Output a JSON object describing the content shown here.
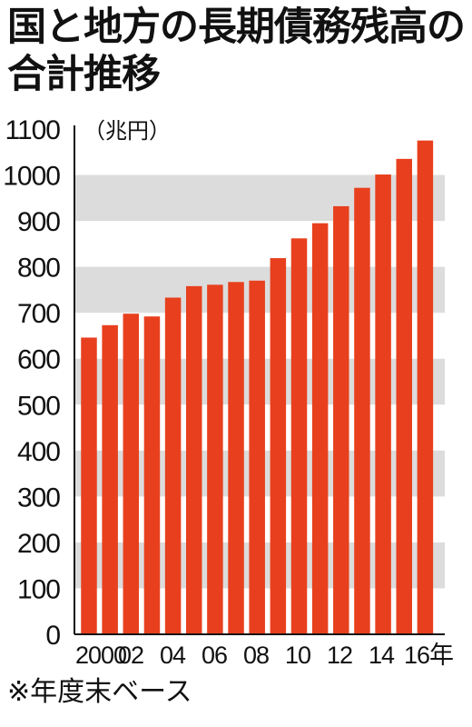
{
  "title": "国と地方の長期債務残高の合計推移",
  "footnote": "※年度末ベース",
  "colors": {
    "bar": "#e8401e",
    "band": "#dcdcdc",
    "axis": "#111111",
    "text": "#111111"
  },
  "chart_data": {
    "type": "bar",
    "title": "国と地方の長期債務残高の合計推移",
    "ylabel": "（兆円）",
    "xlabel": "",
    "ylim": [
      0,
      1100
    ],
    "yticks": [
      0,
      100,
      200,
      300,
      400,
      500,
      600,
      700,
      800,
      900,
      1000,
      1100
    ],
    "x_tick_labels": [
      "2000",
      "02",
      "04",
      "06",
      "08",
      "10",
      "12",
      "14",
      "16年"
    ],
    "categories": [
      "2000",
      "2001",
      "2002",
      "2003",
      "2004",
      "2005",
      "2006",
      "2007",
      "2008",
      "2009",
      "2010",
      "2011",
      "2012",
      "2013",
      "2014",
      "2015",
      "2016"
    ],
    "values": [
      646,
      673,
      698,
      692,
      733,
      758,
      761,
      767,
      770,
      819,
      862,
      895,
      932,
      972,
      1001,
      1035,
      1075
    ],
    "grid": "alternating horizontal bands",
    "legend": "none"
  }
}
